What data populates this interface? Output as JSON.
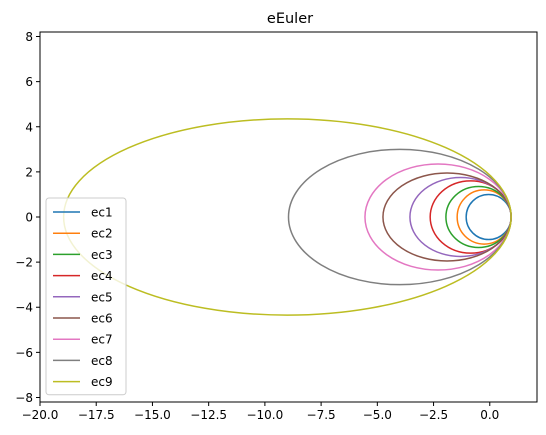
{
  "chart_data": {
    "type": "line",
    "title": "eEuler",
    "xlabel": "",
    "ylabel": "",
    "xlim": [
      -20.0,
      2.1
    ],
    "ylim": [
      -8.2,
      8.2
    ],
    "xticks": [
      -20.0,
      -17.5,
      -15.0,
      -12.5,
      -10.0,
      -7.5,
      -5.0,
      -2.5,
      0.0
    ],
    "xtick_labels": [
      "−20.0",
      "−17.5",
      "−15.0",
      "−12.5",
      "−10.0",
      "−7.5",
      "−5.0",
      "−2.5",
      "0.0"
    ],
    "yticks": [
      -8,
      -6,
      -4,
      -2,
      0,
      2,
      4,
      6,
      8
    ],
    "ytick_labels": [
      "−8",
      "−6",
      "−4",
      "−2",
      "0",
      "2",
      "4",
      "6",
      "8"
    ],
    "grid": false,
    "legend_position": "lower-left",
    "series": [
      {
        "name": "ec1",
        "color": "#1f77b4",
        "shape": "ellipse",
        "center_x": -0.05,
        "center_y": 0.0,
        "semi_axis_x": 1.0,
        "semi_axis_y": 1.0
      },
      {
        "name": "ec2",
        "color": "#ff7f0e",
        "shape": "ellipse",
        "center_x": -0.25,
        "center_y": 0.0,
        "semi_axis_x": 1.2,
        "semi_axis_y": 1.2
      },
      {
        "name": "ec3",
        "color": "#2ca02c",
        "shape": "ellipse",
        "center_x": -0.5,
        "center_y": 0.0,
        "semi_axis_x": 1.45,
        "semi_axis_y": 1.35
      },
      {
        "name": "ec4",
        "color": "#d62728",
        "shape": "ellipse",
        "center_x": -0.85,
        "center_y": 0.0,
        "semi_axis_x": 1.8,
        "semi_axis_y": 1.6
      },
      {
        "name": "ec5",
        "color": "#9467bd",
        "shape": "ellipse",
        "center_x": -1.3,
        "center_y": 0.0,
        "semi_axis_x": 2.25,
        "semi_axis_y": 1.75
      },
      {
        "name": "ec6",
        "color": "#8c564b",
        "shape": "ellipse",
        "center_x": -1.9,
        "center_y": 0.0,
        "semi_axis_x": 2.85,
        "semi_axis_y": 1.95
      },
      {
        "name": "ec7",
        "color": "#e377c2",
        "shape": "ellipse",
        "center_x": -2.3,
        "center_y": 0.0,
        "semi_axis_x": 3.25,
        "semi_axis_y": 2.35
      },
      {
        "name": "ec8",
        "color": "#7f7f7f",
        "shape": "ellipse",
        "center_x": -4.0,
        "center_y": 0.0,
        "semi_axis_x": 4.95,
        "semi_axis_y": 3.0
      },
      {
        "name": "ec9",
        "color": "#bcbd22",
        "shape": "ellipse",
        "center_x": -9.0,
        "center_y": 0.0,
        "semi_axis_x": 9.95,
        "semi_axis_y": 4.35
      }
    ]
  }
}
